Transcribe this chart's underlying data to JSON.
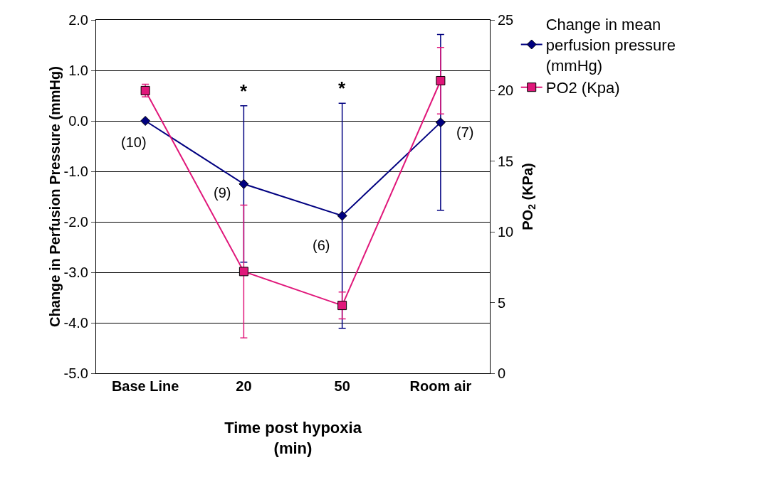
{
  "chart_data": {
    "type": "line",
    "xlabel": "Time post hypoxia (min)",
    "ylabel": "Change in Perfusion Pressure (mmHg)",
    "y2label": "PO$_{2}$ (KPa)",
    "categories": [
      "Base Line",
      "20",
      "50",
      "Room air"
    ],
    "series": [
      {
        "name": "Change in mean perfusion pressure (mmHg)",
        "color": "#000080",
        "marker": "diamond",
        "values": [
          0.0,
          -1.25,
          -1.88,
          -0.03
        ],
        "errors": [
          null,
          1.55,
          2.23,
          1.74
        ]
      },
      {
        "name": "PO2 (Kpa)",
        "color": "#e0177a",
        "marker": "square",
        "axis": "y2",
        "values": [
          20.0,
          7.2,
          4.8,
          20.7
        ],
        "errors": [
          0.45,
          4.7,
          0.95,
          2.35
        ]
      }
    ],
    "ylim": [
      -5,
      2
    ],
    "yticks": [
      {
        "value": -5,
        "label": "-5.0"
      },
      {
        "value": -4,
        "label": "-4.0"
      },
      {
        "value": -3,
        "label": "-3.0"
      },
      {
        "value": -2,
        "label": "-2.0"
      },
      {
        "value": -1,
        "label": "-1.0"
      },
      {
        "value": 0,
        "label": "0.0"
      },
      {
        "value": 1,
        "label": "1.0"
      },
      {
        "value": 2,
        "label": "2.0"
      }
    ],
    "y2lim": [
      0,
      25
    ],
    "y2ticks": [
      0,
      5,
      10,
      15,
      20,
      25
    ],
    "grid": "y",
    "legend": "top right",
    "line_style": "solid",
    "annotations": [
      {
        "text": "(10)",
        "x": "Base Line",
        "y": 0.0
      },
      {
        "text": "(9)",
        "x": "20",
        "y": -1.25
      },
      {
        "text": "(6)",
        "x": "50",
        "y": -1.88
      },
      {
        "text": "(7)",
        "x": "Room air",
        "y": -0.03
      },
      {
        "text": "*",
        "x": "20",
        "y": 0.3
      },
      {
        "text": "*",
        "x": "50",
        "y": 0.35
      }
    ]
  }
}
